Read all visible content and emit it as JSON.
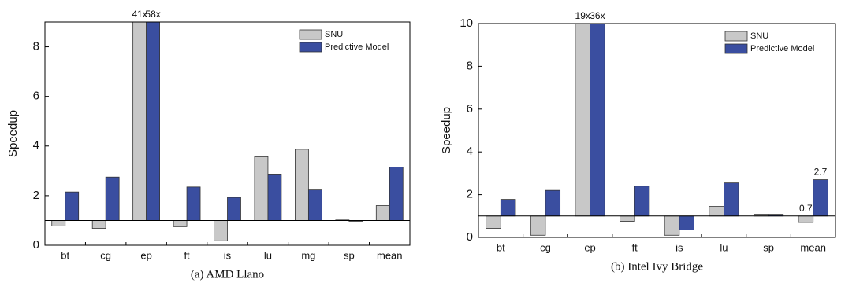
{
  "chart_data": [
    {
      "type": "bar",
      "caption": "(a) AMD Llano",
      "ylabel": "Speedup",
      "categories": [
        "bt",
        "cg",
        "ep",
        "ft",
        "is",
        "lu",
        "mg",
        "sp",
        "mean"
      ],
      "series": [
        {
          "name": "SNU",
          "color": "#c8c8c8",
          "values": [
            0.78,
            0.68,
            41,
            0.75,
            0.18,
            3.57,
            3.87,
            1.02,
            1.6
          ],
          "value_labels": [
            null,
            null,
            "41x",
            null,
            null,
            null,
            null,
            null,
            null
          ]
        },
        {
          "name": "Predictive Model",
          "color": "#3a4ea0",
          "values": [
            2.15,
            2.75,
            58,
            2.35,
            1.93,
            2.87,
            2.23,
            0.97,
            3.15
          ],
          "value_labels": [
            null,
            null,
            "58x",
            null,
            null,
            null,
            null,
            null,
            null
          ]
        }
      ],
      "bar_base": 1,
      "ylim": [
        0,
        9
      ],
      "yticks": [
        0,
        2,
        4,
        6,
        8
      ],
      "legend": "top-right"
    },
    {
      "type": "bar",
      "caption": "(b) Intel Ivy Bridge",
      "ylabel": "Speedup",
      "categories": [
        "bt",
        "cg",
        "ep",
        "ft",
        "is",
        "lu",
        "sp",
        "mean"
      ],
      "series": [
        {
          "name": "SNU",
          "color": "#c8c8c8",
          "values": [
            0.42,
            0.1,
            19,
            0.75,
            0.1,
            1.45,
            1.08,
            0.7
          ],
          "value_labels": [
            null,
            null,
            "19x",
            null,
            null,
            null,
            null,
            "0.7"
          ]
        },
        {
          "name": "Predictive Model",
          "color": "#3a4ea0",
          "values": [
            1.78,
            2.2,
            36,
            2.4,
            0.35,
            2.55,
            1.08,
            2.7
          ],
          "value_labels": [
            null,
            null,
            "36x",
            null,
            null,
            null,
            null,
            "2.7"
          ]
        }
      ],
      "bar_base": 1,
      "ylim": [
        0,
        10
      ],
      "yticks": [
        0,
        2,
        4,
        6,
        8,
        10
      ],
      "legend": "top-right"
    }
  ]
}
